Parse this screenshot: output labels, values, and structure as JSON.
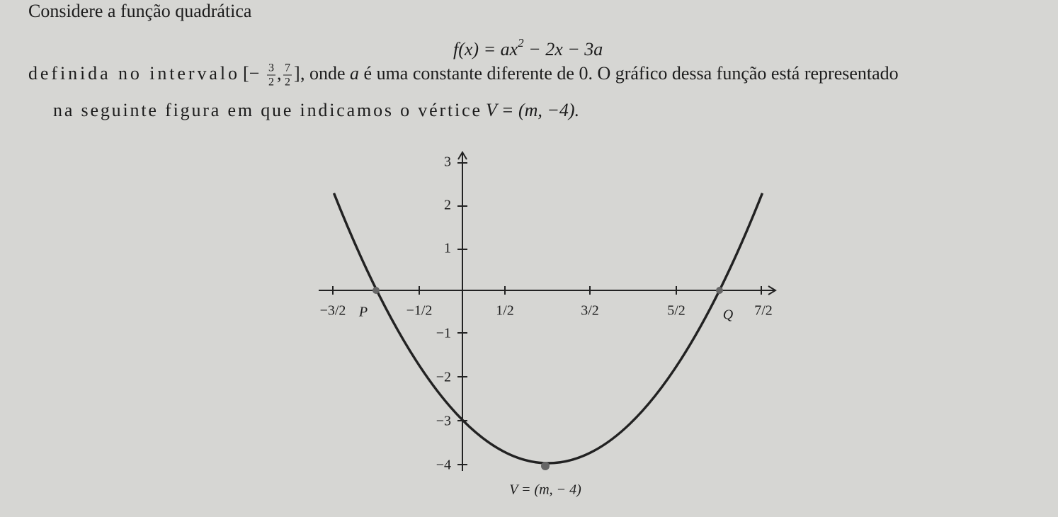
{
  "text": {
    "heading": "Considere a função quadrática",
    "formula": {
      "base": "f(x) = ax",
      "exponent": "2",
      "rest": " − 2x − 3a"
    },
    "line1": {
      "before": "definida no intervalo ",
      "open": "[−",
      "a_num": "3",
      "a_den": "2",
      "sep": ",",
      "b_num": "7",
      "b_den": "2",
      "close": "]",
      "after1": ", onde ",
      "var": "a",
      "after2": " é uma constante diferente de 0. O gráfico dessa função está representado"
    },
    "line2": {
      "before": "na seguinte figura em que indicamos o vértice",
      "vertex": "V = (m, −4)."
    }
  },
  "figure": {
    "x_labels": [
      "−3/2",
      "−1/2",
      "1/2",
      "3/2",
      "5/2",
      "7/2"
    ],
    "y_labels": [
      "3",
      "2",
      "1",
      "−1",
      "−2",
      "−3",
      "−4"
    ],
    "point_labels": [
      "P",
      "Q"
    ],
    "vertex_label": "V = (m, − 4)"
  }
}
